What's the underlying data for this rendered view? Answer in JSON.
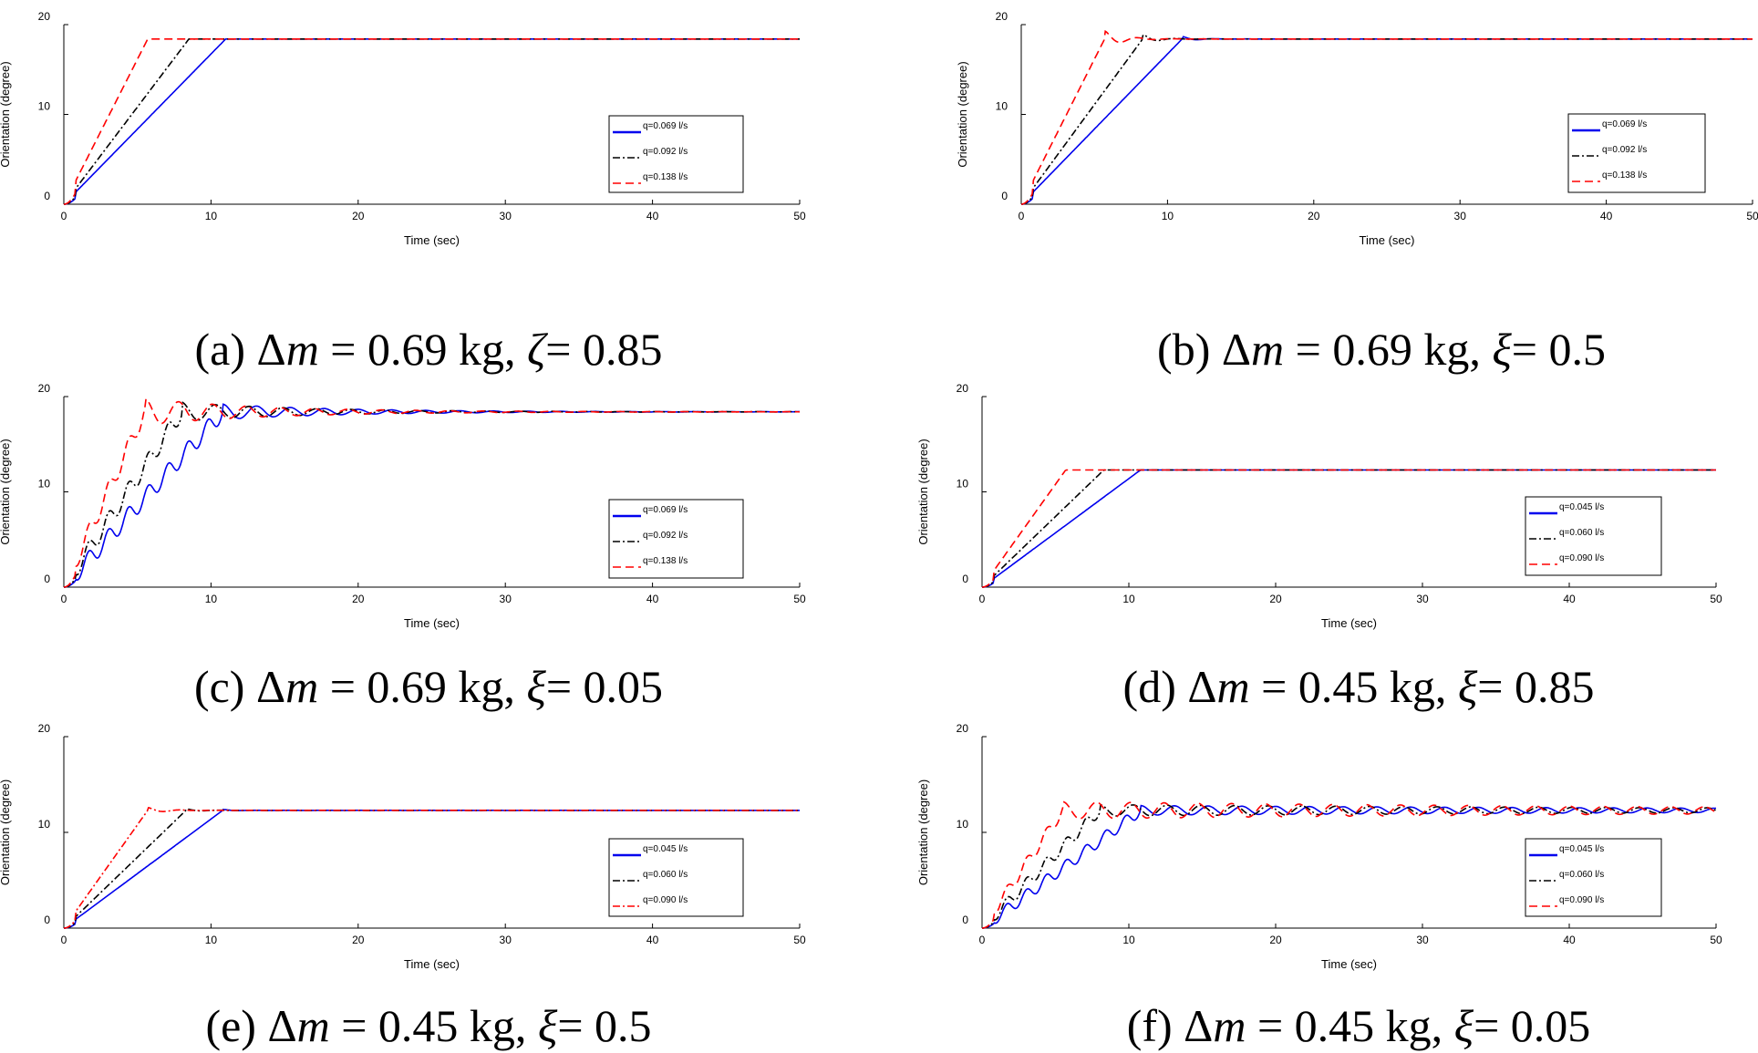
{
  "chart_data": [
    {
      "type": "line",
      "panel": "a",
      "caption": {
        "prefix": "(a) ",
        "delta": "Δ",
        "var": "m",
        "mid": " = 0.69 kg, ",
        "greek": "ζ",
        "suffix": "= 0.85"
      },
      "xlabel": "Time (sec)",
      "ylabel": "Orientation (degree)",
      "xlim": [
        0,
        50
      ],
      "ylim": [
        0,
        20
      ],
      "xticks": [
        "0",
        "10",
        "20",
        "30",
        "40",
        "50"
      ],
      "yticks": [
        "0",
        "10",
        "20"
      ],
      "legend": "right",
      "grid": false,
      "final": 18.4,
      "series": [
        {
          "name": "q=0.069 l/s",
          "color": "#0000ee",
          "dash": "solid",
          "ramp_end": 11.0,
          "osc_amp": 0,
          "osc_decay": 1,
          "stair": 0
        },
        {
          "name": "q=0.092 l/s",
          "color": "#000000",
          "dash": "dashdot",
          "ramp_end": 8.5,
          "osc_amp": 0,
          "osc_decay": 1,
          "stair": 0
        },
        {
          "name": "q=0.138 l/s",
          "color": "#ff0000",
          "dash": "dashed",
          "ramp_end": 5.7,
          "osc_amp": 0,
          "osc_decay": 1,
          "stair": 0
        }
      ]
    },
    {
      "type": "line",
      "panel": "b",
      "caption": {
        "prefix": "(b) ",
        "delta": "Δ",
        "var": "m",
        "mid": " = 0.69 kg, ",
        "greek": "ξ",
        "suffix": "= 0.5"
      },
      "xlabel": "Time (sec)",
      "ylabel": "Orientation (degree)",
      "xlim": [
        0,
        50
      ],
      "ylim": [
        0,
        20
      ],
      "xticks": [
        "0",
        "10",
        "20",
        "30",
        "40",
        "50"
      ],
      "yticks": [
        "0",
        "10",
        "20"
      ],
      "legend": "right",
      "grid": false,
      "final": 18.4,
      "series": [
        {
          "name": "q=0.069 l/s",
          "color": "#0000ee",
          "dash": "solid",
          "ramp_end": 11.0,
          "osc_amp": 0.3,
          "osc_decay": 1.2,
          "stair": 0
        },
        {
          "name": "q=0.092 l/s",
          "color": "#000000",
          "dash": "dashdot",
          "ramp_end": 8.3,
          "osc_amp": 0.5,
          "osc_decay": 1.0,
          "stair": 0
        },
        {
          "name": "q=0.138 l/s",
          "color": "#ff0000",
          "dash": "dashed",
          "ramp_end": 5.7,
          "osc_amp": 0.9,
          "osc_decay": 0.8,
          "stair": 0
        }
      ]
    },
    {
      "type": "line",
      "panel": "c",
      "caption": {
        "prefix": "(c)  ",
        "delta": "Δ",
        "var": "m",
        "mid": " = 0.69 kg, ",
        "greek": "ξ",
        "suffix": "= 0.05"
      },
      "xlabel": "Time (sec)",
      "ylabel": "Orientation (degree)",
      "xlim": [
        0,
        50
      ],
      "ylim": [
        0,
        20
      ],
      "xticks": [
        "0",
        "10",
        "20",
        "30",
        "40",
        "50"
      ],
      "yticks": [
        "0",
        "10",
        "20"
      ],
      "legend": "right",
      "grid": false,
      "final": 18.4,
      "series": [
        {
          "name": "q=0.069 l/s",
          "color": "#0000ee",
          "dash": "solid",
          "ramp_end": 10.8,
          "osc_amp": 0.8,
          "osc_decay": 0.12,
          "stair": 0.9
        },
        {
          "name": "q=0.092 l/s",
          "color": "#000000",
          "dash": "dashdot",
          "ramp_end": 8.0,
          "osc_amp": 1.0,
          "osc_decay": 0.12,
          "stair": 0.9
        },
        {
          "name": "q=0.138 l/s",
          "color": "#ff0000",
          "dash": "dashed",
          "ramp_end": 5.5,
          "osc_amp": 1.4,
          "osc_decay": 0.12,
          "stair": 0.9
        }
      ]
    },
    {
      "type": "line",
      "panel": "d",
      "caption": {
        "prefix": "(d) ",
        "delta": "Δ",
        "var": "m",
        "mid": " = 0.45 kg, ",
        "greek": "ξ",
        "suffix": "= 0.85"
      },
      "xlabel": "Time (sec)",
      "ylabel": "Orientation (degree)",
      "xlim": [
        0,
        50
      ],
      "ylim": [
        0,
        20
      ],
      "xticks": [
        "0",
        "10",
        "20",
        "30",
        "40",
        "50"
      ],
      "yticks": [
        "0",
        "10",
        "20"
      ],
      "legend": "right",
      "grid": false,
      "final": 12.3,
      "series": [
        {
          "name": "q=0.045 l/s",
          "color": "#0000ee",
          "dash": "solid",
          "ramp_end": 10.8,
          "osc_amp": 0,
          "osc_decay": 1,
          "stair": 0
        },
        {
          "name": "q=0.060 l/s",
          "color": "#000000",
          "dash": "dashdot",
          "ramp_end": 8.3,
          "osc_amp": 0,
          "osc_decay": 1,
          "stair": 0
        },
        {
          "name": "q=0.090 l/s",
          "color": "#ff0000",
          "dash": "dashed",
          "ramp_end": 5.7,
          "osc_amp": 0,
          "osc_decay": 1,
          "stair": 0
        }
      ]
    },
    {
      "type": "line",
      "panel": "e",
      "caption": {
        "prefix": "(e) ",
        "delta": "Δ",
        "var": "m",
        "mid": " = 0.45 kg, ",
        "greek": "ξ",
        "suffix": "= 0.5"
      },
      "xlabel": "Time (sec)",
      "ylabel": "Orientation (degree)",
      "xlim": [
        0,
        50
      ],
      "ylim": [
        0,
        20
      ],
      "xticks": [
        "0",
        "10",
        "20",
        "30",
        "40",
        "50"
      ],
      "yticks": [
        "0",
        "10",
        "20"
      ],
      "legend": "right",
      "grid": false,
      "final": 12.3,
      "series": [
        {
          "name": "q=0.045 l/s",
          "color": "#0000ee",
          "dash": "solid",
          "ramp_end": 10.8,
          "osc_amp": 0.1,
          "osc_decay": 1.2,
          "stair": 0
        },
        {
          "name": "q=0.060 l/s",
          "color": "#000000",
          "dash": "dashdot",
          "ramp_end": 8.3,
          "osc_amp": 0.15,
          "osc_decay": 1.0,
          "stair": 0
        },
        {
          "name": "q=0.090 l/s",
          "color": "#ff0000",
          "dash": "dashdot",
          "ramp_end": 5.7,
          "osc_amp": 0.3,
          "osc_decay": 0.8,
          "stair": 0
        }
      ]
    },
    {
      "type": "line",
      "panel": "f",
      "caption": {
        "prefix": "(f) ",
        "delta": "Δ",
        "var": "m",
        "mid": " = 0.45 kg, ",
        "greek": "ξ",
        "suffix": "= 0.05"
      },
      "xlabel": "Time (sec)",
      "ylabel": "Orientation (degree)",
      "xlim": [
        0,
        50
      ],
      "ylim": [
        0,
        20
      ],
      "xticks": [
        "0",
        "10",
        "20",
        "30",
        "40",
        "50"
      ],
      "yticks": [
        "0",
        "10",
        "20"
      ],
      "legend": "right",
      "grid": false,
      "final": 12.3,
      "series": [
        {
          "name": "q=0.045 l/s",
          "color": "#0000ee",
          "dash": "solid",
          "ramp_end": 10.8,
          "osc_amp": 0.5,
          "osc_decay": 0.02,
          "stair": 0.6
        },
        {
          "name": "q=0.060 l/s",
          "color": "#000000",
          "dash": "dashdot",
          "ramp_end": 8.0,
          "osc_amp": 0.6,
          "osc_decay": 0.02,
          "stair": 0.6
        },
        {
          "name": "q=0.090 l/s",
          "color": "#ff0000",
          "dash": "dashed",
          "ramp_end": 5.5,
          "osc_amp": 0.9,
          "osc_decay": 0.02,
          "stair": 0.6
        }
      ]
    }
  ]
}
